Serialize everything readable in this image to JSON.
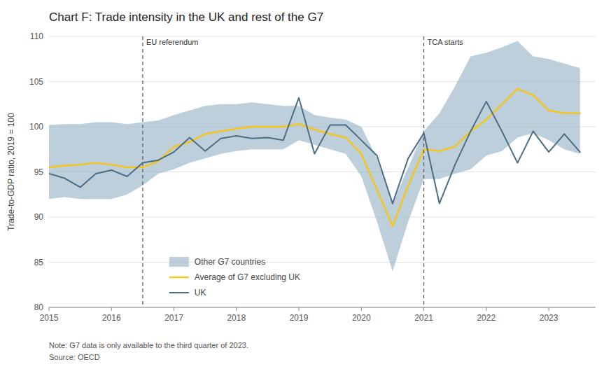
{
  "chart_data": {
    "type": "line",
    "title": "Chart F: Trade intensity in the UK and rest of the G7",
    "ylabel": "Trade-to-GDP ratio, 2019 = 100",
    "note": "Note: G7 data is only available to the third quarter of 2023.",
    "source": "Source: OECD",
    "xlim": [
      2015.0,
      2023.75
    ],
    "xticks": [
      2015,
      2016,
      2017,
      2018,
      2019,
      2020,
      2021,
      2022,
      2023
    ],
    "ylim": [
      80,
      110
    ],
    "yticks": [
      80,
      85,
      90,
      95,
      100,
      105,
      110
    ],
    "grid": true,
    "legend": "lower left",
    "annotations": [
      {
        "x": 2016.5,
        "text": "EU referendum"
      },
      {
        "x": 2021.0,
        "text": "TCA starts"
      }
    ],
    "x": [
      2015.0,
      2015.25,
      2015.5,
      2015.75,
      2016.0,
      2016.25,
      2016.5,
      2016.75,
      2017.0,
      2017.25,
      2017.5,
      2017.75,
      2018.0,
      2018.25,
      2018.5,
      2018.75,
      2019.0,
      2019.25,
      2019.5,
      2019.75,
      2020.0,
      2020.25,
      2020.5,
      2020.75,
      2021.0,
      2021.25,
      2021.5,
      2021.75,
      2022.0,
      2022.25,
      2022.5,
      2022.75,
      2023.0,
      2023.25,
      2023.5
    ],
    "series": [
      {
        "name": "Other G7 countries",
        "type": "area",
        "color": "#9ab5c8",
        "upper": [
          100.2,
          100.3,
          100.3,
          100.5,
          100.5,
          100.3,
          100.5,
          100.7,
          101.3,
          101.8,
          102.3,
          102.5,
          102.5,
          102.7,
          102.5,
          102.3,
          102.3,
          101.3,
          101.0,
          100.8,
          100.0,
          96.5,
          91.5,
          95.5,
          99.5,
          101.5,
          104.5,
          107.8,
          108.2,
          108.8,
          109.5,
          107.8,
          107.5,
          107.0,
          106.5
        ],
        "lower": [
          92.0,
          92.2,
          92.0,
          92.0,
          92.0,
          92.5,
          93.5,
          94.8,
          95.3,
          96.0,
          96.5,
          97.0,
          97.3,
          97.5,
          97.5,
          97.5,
          98.5,
          98.0,
          97.5,
          97.0,
          94.5,
          89.5,
          84.0,
          89.5,
          94.2,
          94.2,
          94.8,
          95.3,
          96.8,
          97.3,
          98.8,
          99.3,
          98.5,
          97.5,
          97.0
        ]
      },
      {
        "name": "Average of G7 excluding UK",
        "type": "line",
        "color": "#f5c518",
        "values": [
          95.5,
          95.7,
          95.8,
          96.0,
          95.8,
          95.5,
          95.5,
          96.2,
          97.8,
          98.3,
          99.2,
          99.5,
          99.8,
          100.0,
          100.0,
          100.0,
          100.3,
          99.7,
          99.2,
          98.8,
          97.0,
          93.0,
          89.0,
          93.5,
          97.5,
          97.3,
          97.8,
          99.5,
          100.8,
          102.5,
          104.2,
          103.5,
          101.8,
          101.5,
          101.5
        ]
      },
      {
        "name": "UK",
        "type": "line",
        "color": "#4a6e85",
        "values": [
          94.8,
          94.3,
          93.3,
          94.8,
          95.2,
          94.5,
          96.0,
          96.3,
          97.2,
          98.8,
          97.3,
          98.7,
          99.0,
          98.7,
          98.8,
          98.5,
          103.2,
          97.0,
          100.2,
          100.2,
          98.5,
          96.8,
          91.5,
          96.5,
          99.3,
          91.5,
          95.8,
          99.5,
          102.8,
          99.5,
          96.0,
          99.5,
          97.2,
          99.2,
          97.2
        ]
      }
    ]
  }
}
